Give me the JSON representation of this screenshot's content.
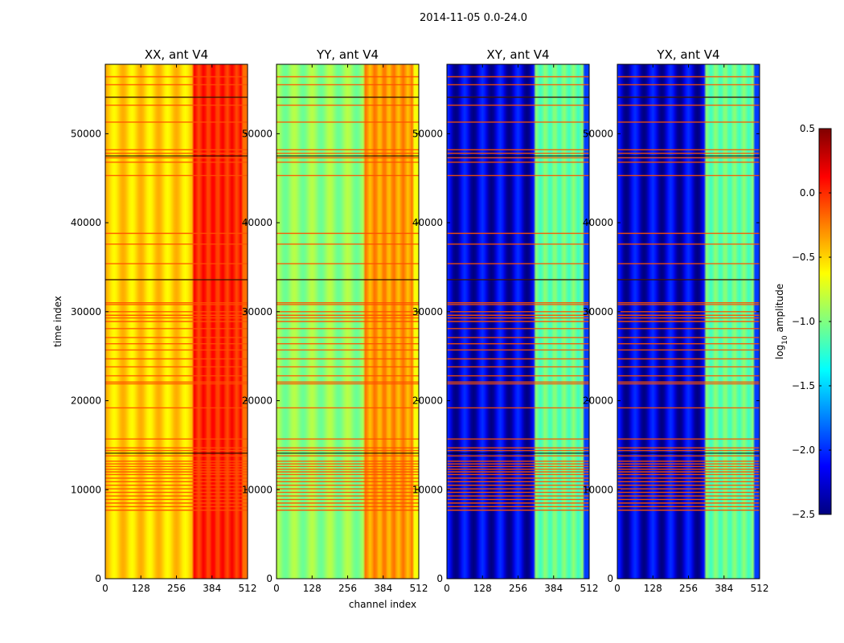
{
  "figure": {
    "suptitle": "2014-11-05 0.0-24.0"
  },
  "colors": {
    "dark_blue": "#000080",
    "blue": "#0000ff",
    "cyan": "#00ffff",
    "yellow": "#ffff00",
    "red": "#ff0000",
    "dark_red": "#800000",
    "flag_orange": "#ff5000",
    "flag_black": "#000000"
  },
  "chart_data": {
    "type": "heatmap",
    "title": "2014-11-05 0.0-24.0",
    "xlabel": "channel index",
    "ylabel": "time index",
    "xlim": [
      0,
      512
    ],
    "ylim": [
      0,
      57800
    ],
    "xticks": [
      "0",
      "128",
      "256",
      "384",
      "512"
    ],
    "yticks": [
      "0",
      "10000",
      "20000",
      "30000",
      "40000",
      "50000"
    ],
    "colorbar": {
      "label_main": "log",
      "label_sub": "10",
      "label_tail": " amplitude",
      "range": [
        -2.5,
        0.5
      ],
      "ticks": [
        "0.5",
        "0.0",
        "−0.5",
        "−1.0",
        "−1.5",
        "−2.0",
        "−2.5"
      ],
      "tick_values": [
        0.5,
        0.0,
        -0.5,
        -1.0,
        -1.5,
        -2.0,
        -2.5
      ],
      "colormap": "jet"
    },
    "panels": [
      {
        "title": "XX, ant V4",
        "polarization": "XX",
        "baseline_level": -0.5,
        "band_level": -0.1
      },
      {
        "title": "YY, ant V4",
        "polarization": "YY",
        "baseline_level": -0.95,
        "band_level": -0.45
      },
      {
        "title": "XY, ant V4",
        "polarization": "XY",
        "baseline_level": -2.25,
        "band_level": -1.2
      },
      {
        "title": "YX, ant V4",
        "polarization": "YX",
        "baseline_level": -2.25,
        "band_level": -1.2
      }
    ],
    "flagged_time_indices": [
      7700,
      8100,
      8500,
      8900,
      9300,
      9700,
      10100,
      10500,
      10900,
      11300,
      11700,
      12000,
      12300,
      12600,
      12900,
      13200,
      13800,
      14400,
      14700,
      15700,
      19200,
      21900,
      22100,
      22800,
      23800,
      24700,
      25700,
      26400,
      27100,
      28100,
      28900,
      29300,
      29600,
      30000,
      30800,
      31000,
      33600,
      35400,
      37600,
      38800,
      45300,
      46800,
      47300,
      47800,
      48200,
      51300,
      53200,
      54100,
      55500,
      56400
    ],
    "blank_time_indices": [
      14100,
      33600,
      47500,
      54100
    ]
  }
}
